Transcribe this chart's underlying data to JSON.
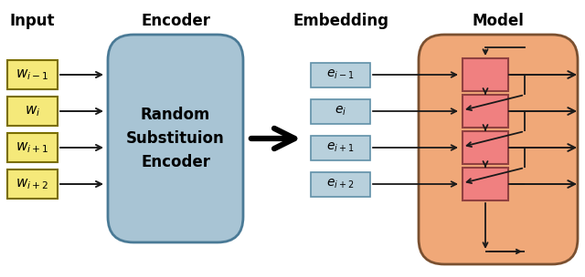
{
  "title_input": "Input",
  "title_encoder": "Encoder",
  "title_embedding": "Embedding",
  "title_model": "Model",
  "encoder_label": "Random\nSubstituion\nEncoder",
  "input_words": [
    "$w_{i-1}$",
    "$w_i$",
    "$w_{i+1}$",
    "$w_{i+2}$"
  ],
  "embed_words": [
    "$e_{i-1}$",
    "$e_i$",
    "$e_{i+1}$",
    "$e_{i+2}$"
  ],
  "input_box_color": "#F5E97A",
  "input_box_edge": "#7A6E00",
  "encoder_bg": "#A8C4D4",
  "encoder_edge": "#4A7A96",
  "model_bg": "#F0A878",
  "model_edge": "#7A5030",
  "rnn_cell_color": "#F08080",
  "rnn_cell_edge": "#904040",
  "embed_box_color": "#B8D0DC",
  "embed_box_edge": "#6090A8",
  "arrow_color": "#1a1a1a",
  "bg_color": "#ffffff",
  "title_fontsize": 12,
  "label_fontsize": 11
}
